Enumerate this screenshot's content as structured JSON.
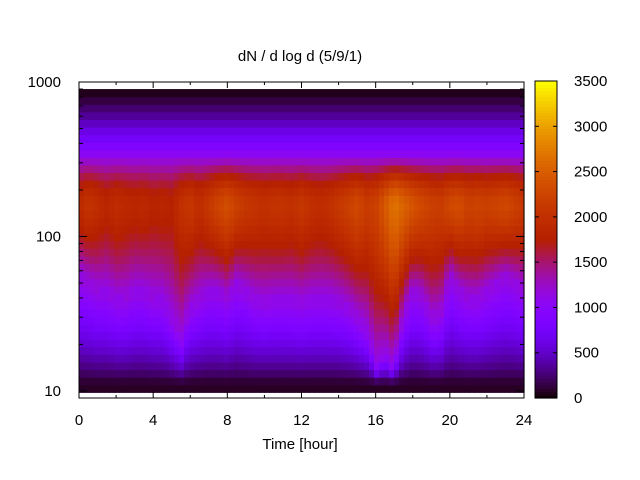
{
  "chart_data": {
    "type": "heatmap",
    "title": "dN / d log d (5/9/1)",
    "xlabel": "Time [hour]",
    "ylabel": "",
    "xlim": [
      0,
      24
    ],
    "ylim": [
      9,
      1000
    ],
    "yscale": "log",
    "x_ticks": [
      0,
      4,
      8,
      12,
      16,
      20,
      24
    ],
    "y_ticks": [
      10,
      100,
      1000
    ],
    "colorbar": {
      "range": [
        0,
        3500
      ],
      "ticks": [
        0,
        500,
        1000,
        1500,
        2000,
        2500,
        3000,
        3500
      ],
      "palette": "black-purple-red-orange-yellow"
    },
    "peak_diameter": 160,
    "x": [
      0,
      0.5,
      1,
      1.5,
      2,
      2.5,
      3,
      3.5,
      4,
      4.5,
      5,
      5.5,
      6,
      6.5,
      7,
      7.5,
      8,
      8.5,
      9,
      9.5,
      10,
      10.5,
      11,
      11.5,
      12,
      12.5,
      13,
      13.5,
      14,
      14.5,
      15,
      15.5,
      16,
      16.5,
      17,
      17.5,
      18,
      18.5,
      19,
      19.5,
      20,
      20.5,
      21,
      21.5,
      22,
      22.5,
      23,
      23.5,
      24
    ],
    "peak_values": [
      1900,
      2050,
      1950,
      1850,
      1950,
      1900,
      1850,
      1900,
      1800,
      1850,
      1800,
      2000,
      2100,
      1950,
      2100,
      2250,
      2350,
      2200,
      2100,
      2050,
      2000,
      2050,
      2050,
      2000,
      2100,
      2000,
      1950,
      2000,
      2100,
      2200,
      2300,
      2150,
      2200,
      2450,
      2700,
      2550,
      2400,
      2300,
      2200,
      2150,
      2300,
      2350,
      2200,
      2250,
      2200,
      2250,
      2300,
      2200,
      2100
    ],
    "lower_edge_diameter": [
      55,
      50,
      45,
      45,
      40,
      40,
      45,
      45,
      40,
      40,
      30,
      22,
      35,
      40,
      45,
      45,
      40,
      50,
      45,
      40,
      38,
      40,
      40,
      40,
      38,
      40,
      40,
      40,
      38,
      35,
      30,
      25,
      15,
      18,
      14,
      30,
      45,
      40,
      30,
      30,
      55,
      45,
      40,
      40,
      45,
      50,
      55,
      50,
      45
    ]
  },
  "colors": {
    "background": "#ffffff",
    "plot_background": "#ffffff",
    "axis": "#000000"
  }
}
